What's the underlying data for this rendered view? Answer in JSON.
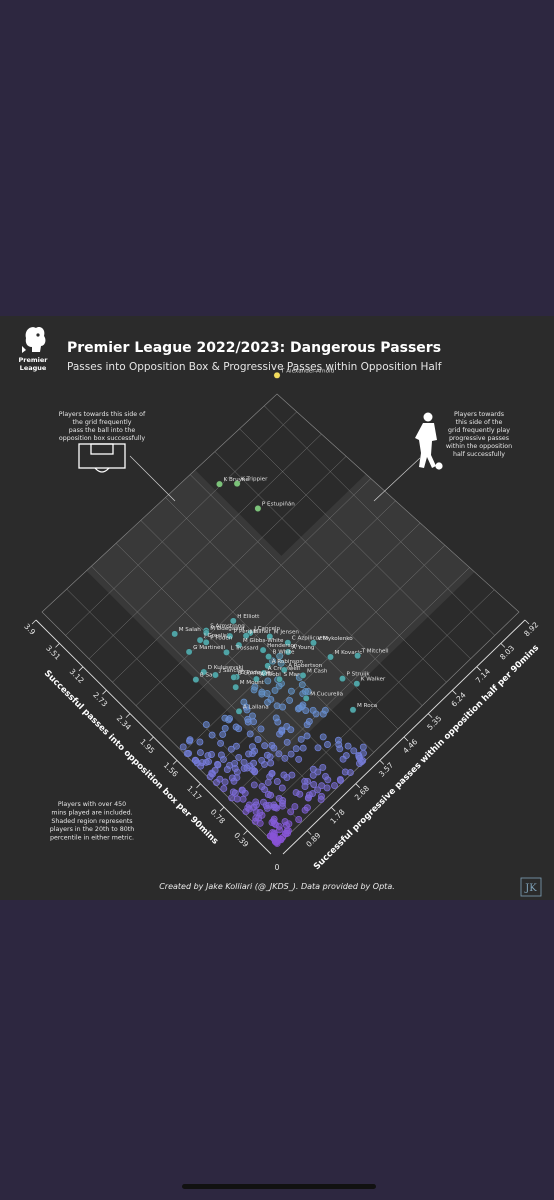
{
  "card": {
    "logo_text_1": "Premier",
    "logo_text_2": "League",
    "title": "Premier League 2022/2023: Dangerous Passers",
    "subtitle": "Passes into Opposition Box & Progressive Passes within Opposition Half",
    "note_left": [
      "Players towards this side of",
      "the grid frequently",
      "pass the ball into the",
      "opposition box successfully"
    ],
    "note_right": [
      "Players towards",
      "this side of the",
      "grid frequently play",
      "progressive passes",
      "within the opposition",
      "half successfully"
    ],
    "note_bottom": [
      "Players with over 450",
      "mins played are included.",
      "Shaded region represents",
      "players in the 20th to 80th",
      "percentile in either metric."
    ],
    "credit": "Created by Jake Kolliari (@_JKDS_). Data provided by Opta.",
    "credit_logo": "JK",
    "colors": {
      "background": "#2b2b2b",
      "frame": "#2d2740",
      "highlight": "#f2dc5d",
      "teal": "#4fa3a5",
      "purple": "#8a4fd6"
    }
  },
  "chart_data": {
    "type": "scatter",
    "title": "Premier League 2022/2023: Dangerous Passers",
    "subtitle": "Passes into Opposition Box & Progressive Passes within Opposition Half",
    "xlabel": "Successful passes into opposition box per 90mins",
    "ylabel": "Successful progressive passes within opposition half per 90mins",
    "x_ticks": [
      "0.39",
      "0.78",
      "1.17",
      "1.56",
      "1.95",
      "2.34",
      "2.73",
      "3.12",
      "3.51",
      "3.9"
    ],
    "y_ticks": [
      "0.89",
      "1.78",
      "2.68",
      "3.57",
      "4.46",
      "5.35",
      "6.24",
      "7.14",
      "8.03",
      "8.92"
    ],
    "origin_label": "0",
    "xlim": [
      0,
      3.9
    ],
    "ylim": [
      0,
      8.92
    ],
    "shaded_region": "20th to 80th percentile in either metric",
    "labeled_points": [
      {
        "name": "T Alexander-Arnold",
        "x": 3.98,
        "y": 8.84
      },
      {
        "name": "K Trippier",
        "x": 3.39,
        "y": 6.06
      },
      {
        "name": "K Bruyne",
        "x": 3.53,
        "y": 5.72
      },
      {
        "name": "P Estupiñán",
        "x": 3.01,
        "y": 5.98
      },
      {
        "name": "S Armstrong",
        "x": 2.4,
        "y": 2.72
      },
      {
        "name": "H Elliott",
        "x": 2.26,
        "y": 3.41
      },
      {
        "name": "M Salah",
        "x": 2.63,
        "y": 2.07
      },
      {
        "name": "M Ødegaard",
        "x": 2.38,
        "y": 2.68
      },
      {
        "name": "J Cancelo",
        "x": 2.02,
        "y": 3.5
      },
      {
        "name": "M Jensen",
        "x": 1.83,
        "y": 3.8
      },
      {
        "name": "J Grealish",
        "x": 2.37,
        "y": 2.43
      },
      {
        "name": "P Perisic",
        "x": 2.16,
        "y": 3.06
      },
      {
        "name": "J Milner",
        "x": 2.03,
        "y": 3.37
      },
      {
        "name": "C Azpilicueta",
        "x": 1.63,
        "y": 4.02
      },
      {
        "name": "P Foden",
        "x": 2.3,
        "y": 2.5
      },
      {
        "name": "M Gibbs-White",
        "x": 2.01,
        "y": 3.06
      },
      {
        "name": "G Martinelli",
        "x": 2.36,
        "y": 2.0
      },
      {
        "name": "L Trossard",
        "x": 2.05,
        "y": 2.69
      },
      {
        "name": "Henderson",
        "x": 1.77,
        "y": 3.42
      },
      {
        "name": "A Young",
        "x": 1.55,
        "y": 3.85
      },
      {
        "name": "V Mykolenko",
        "x": 1.42,
        "y": 4.5
      },
      {
        "name": "B White",
        "x": 1.67,
        "y": 3.4
      },
      {
        "name": "D Kulusevski",
        "x": 2.07,
        "y": 1.9
      },
      {
        "name": "A Robinson",
        "x": 1.6,
        "y": 3.21
      },
      {
        "name": "B Saka",
        "x": 2.07,
        "y": 1.61
      },
      {
        "name": "J Sancho",
        "x": 1.95,
        "y": 2.06
      },
      {
        "name": "D Podence",
        "x": 1.76,
        "y": 2.42
      },
      {
        "name": "A Cresswell",
        "x": 1.57,
        "y": 3.0
      },
      {
        "name": "M Kovacic",
        "x": 1.16,
        "y": 4.55
      },
      {
        "name": "B Guimarães",
        "x": 1.78,
        "y": 2.36
      },
      {
        "name": "A Iwobi",
        "x": 1.58,
        "y": 2.75
      },
      {
        "name": "A Robertson",
        "x": 1.43,
        "y": 3.44
      },
      {
        "name": "T Mitchell",
        "x": 0.95,
        "y": 5.08
      },
      {
        "name": "M Mount",
        "x": 1.68,
        "y": 2.21
      },
      {
        "name": "S March",
        "x": 1.39,
        "y": 3.18
      },
      {
        "name": "M Cash",
        "x": 1.23,
        "y": 3.69
      },
      {
        "name": "A Lallana",
        "x": 1.45,
        "y": 1.82
      },
      {
        "name": "P Struijk",
        "x": 0.88,
        "y": 4.37
      },
      {
        "name": "M Cucurella",
        "x": 1.01,
        "y": 3.32
      },
      {
        "name": "K Walker",
        "x": 0.72,
        "y": 4.54
      },
      {
        "name": "M Roca",
        "x": 0.53,
        "y": 3.98
      }
    ]
  }
}
